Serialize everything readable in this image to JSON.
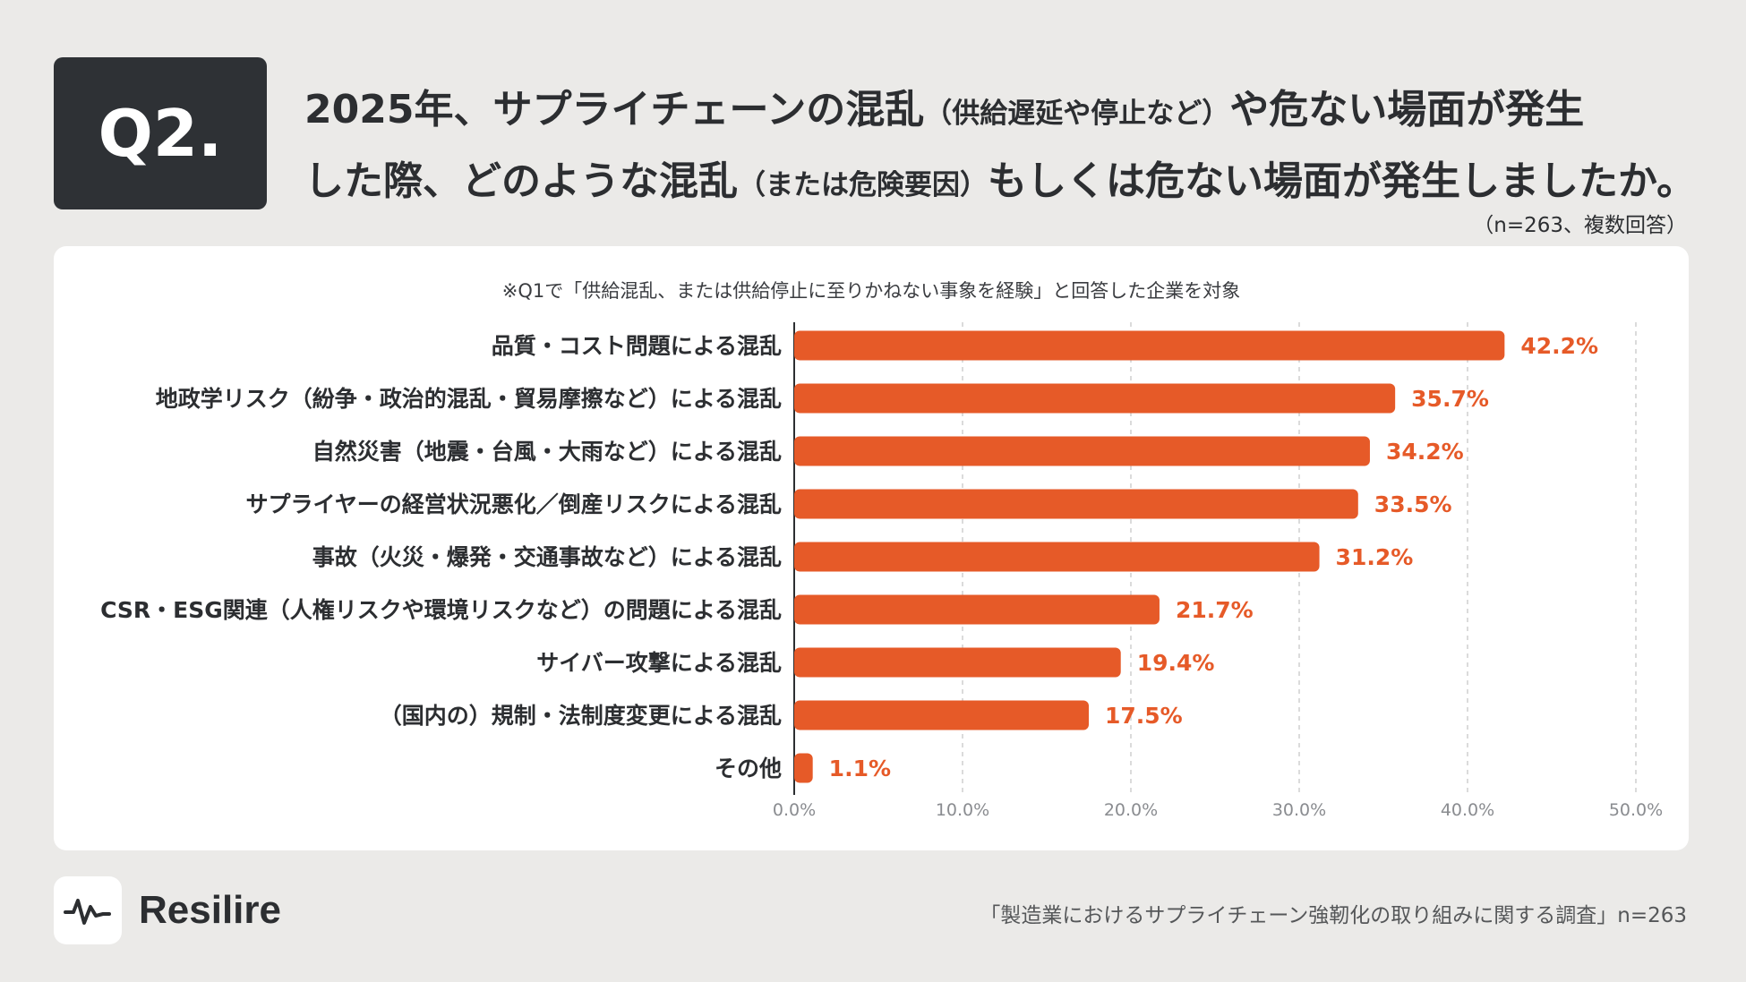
{
  "badge": "Q2.",
  "title": {
    "line1_a": "2025年、サプライチェーンの混乱",
    "line1_b": "（供給遅延や停止など）",
    "line1_c": "や危ない場面が発生",
    "line2_a": "した際、どのような混乱",
    "line2_b": "（または危険要因）",
    "line2_c": "もしくは危ない場面が発生しましたか。"
  },
  "sample_note": "（n=263、複数回答）",
  "chart_note": "※Q1で「供給混乱、または供給停止に至りかねない事象を経験」と回答した企業を対象",
  "chart_data": {
    "type": "bar",
    "orientation": "horizontal",
    "categories": [
      "品質・コスト問題による混乱",
      "地政学リスク（紛争・政治的混乱・貿易摩擦など）による混乱",
      "自然災害（地震・台風・大雨など）による混乱",
      "サプライヤーの経営状況悪化／倒産リスクによる混乱",
      "事故（火災・爆発・交通事故など）による混乱",
      "CSR・ESG関連（人権リスクや環境リスクなど）の問題による混乱",
      "サイバー攻撃による混乱",
      "（国内の）規制・法制度変更による混乱",
      "その他"
    ],
    "values": [
      42.2,
      35.7,
      34.2,
      33.5,
      31.2,
      21.7,
      19.4,
      17.5,
      1.1
    ],
    "value_labels": [
      "42.2%",
      "35.7%",
      "34.2%",
      "33.5%",
      "31.2%",
      "21.7%",
      "19.4%",
      "17.5%",
      "1.1%"
    ],
    "xlim": [
      0,
      50
    ],
    "xticks": [
      "0.0%",
      "10.0%",
      "20.0%",
      "30.0%",
      "40.0%",
      "50.0%"
    ],
    "xgrid": "dashed vertical",
    "bar_color": "#e65a28",
    "label_color": "#e65a28"
  },
  "brand": "Resilire",
  "source": "「製造業におけるサプライチェーン強靭化の取り組みに関する調査」n=263"
}
